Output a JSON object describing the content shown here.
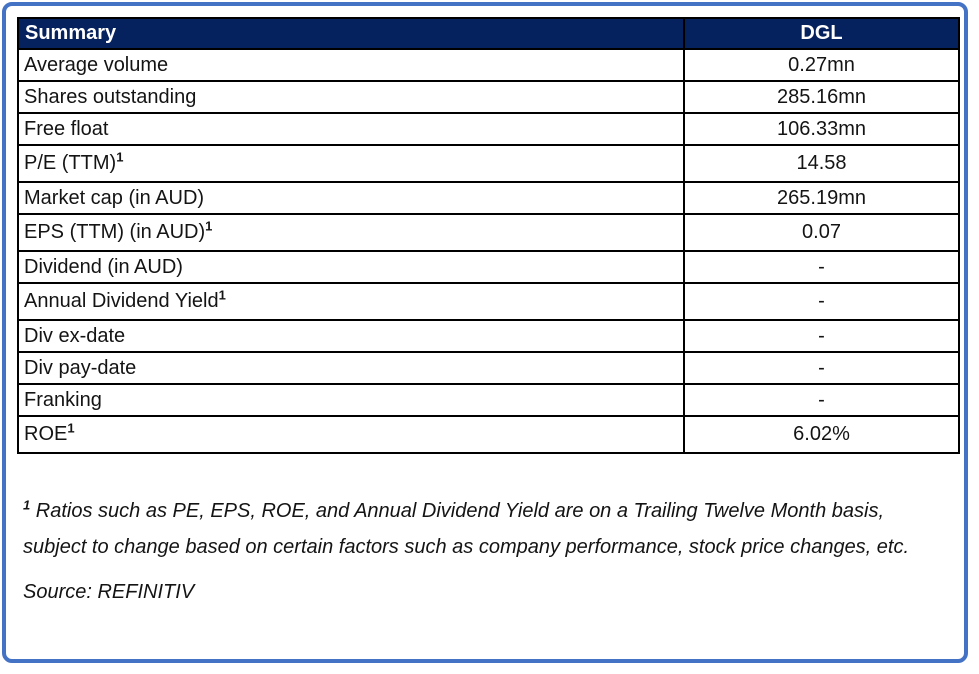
{
  "table": {
    "header": {
      "label": "Summary",
      "value": "DGL"
    },
    "rows": [
      {
        "label": "Average volume",
        "sup": "",
        "value": "0.27mn"
      },
      {
        "label": "Shares outstanding",
        "sup": "",
        "value": "285.16mn"
      },
      {
        "label": "Free float",
        "sup": "",
        "value": "106.33mn"
      },
      {
        "label": "P/E (TTM)",
        "sup": "1",
        "value": "14.58"
      },
      {
        "label": "Market cap (in AUD)",
        "sup": "",
        "value": "265.19mn"
      },
      {
        "label": "EPS (TTM) (in AUD)",
        "sup": "1",
        "value": "0.07"
      },
      {
        "label": "Dividend (in AUD)",
        "sup": "",
        "value": "-"
      },
      {
        "label": "Annual Dividend Yield",
        "sup": "1",
        "value": "-"
      },
      {
        "label": "Div ex-date",
        "sup": "",
        "value": "-"
      },
      {
        "label": "Div pay-date",
        "sup": "",
        "value": "-"
      },
      {
        "label": "Franking",
        "sup": "",
        "value": "-"
      },
      {
        "label": "ROE",
        "sup": "1",
        "value": "6.02%"
      }
    ]
  },
  "footnote": {
    "sup": "1",
    "text": " Ratios such as PE, EPS, ROE, and Annual Dividend Yield are on a Trailing Twelve Month basis, subject to change based on certain factors such as company performance, stock price changes, etc."
  },
  "source": "Source: REFINITIV",
  "colors": {
    "header_bg": "#05215E",
    "header_text": "#FFFFFF",
    "frame_border": "#4472C4",
    "cell_border": "#000000"
  }
}
